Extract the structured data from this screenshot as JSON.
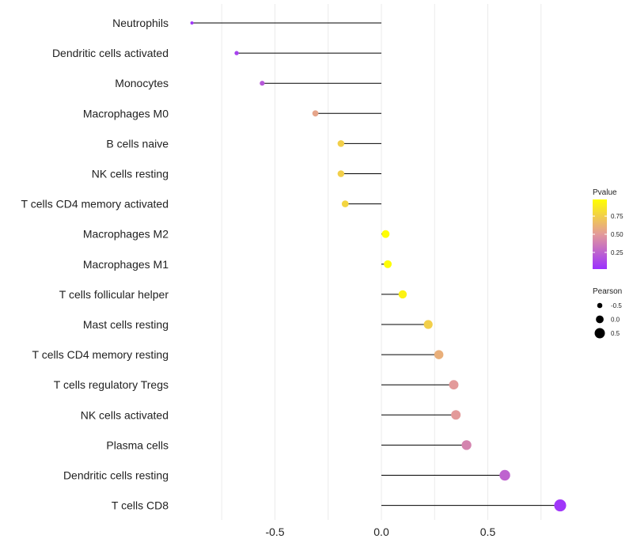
{
  "chart_data": {
    "type": "lollipop",
    "title": "",
    "xlabel": "",
    "ylabel": "",
    "xlim": [
      -0.95,
      0.86
    ],
    "x_ticks": [
      -0.5,
      0.0,
      0.5
    ],
    "x_tick_labels": [
      "-0.5",
      "0.0",
      "0.5"
    ],
    "grid": true,
    "categories": [
      "Neutrophils",
      "Dendritic cells activated",
      "Monocytes",
      "Macrophages M0",
      "B cells naive",
      "NK cells resting",
      "T cells CD4 memory activated",
      "Macrophages M2",
      "Macrophages M1",
      "T cells follicular helper",
      "Mast cells resting",
      "T cells CD4 memory resting",
      "T cells regulatory  Tregs ",
      "NK cells activated",
      "Plasma cells",
      "Dendritic cells resting",
      "T cells CD8"
    ],
    "pearson": [
      -0.89,
      -0.68,
      -0.56,
      -0.31,
      -0.19,
      -0.19,
      -0.17,
      0.02,
      0.03,
      0.1,
      0.22,
      0.27,
      0.34,
      0.35,
      0.4,
      0.58,
      0.84
    ],
    "pvalue": [
      0.05,
      0.1,
      0.2,
      0.55,
      0.75,
      0.75,
      0.78,
      0.97,
      0.97,
      0.92,
      0.75,
      0.6,
      0.5,
      0.5,
      0.4,
      0.25,
      0.05
    ],
    "legends": {
      "color": {
        "title": "Pvalue",
        "ticks": [
          0.25,
          0.5,
          0.75
        ],
        "tick_labels": [
          "0.25",
          "0.50",
          "0.75"
        ],
        "range": [
          0.02,
          0.98
        ],
        "low_color": "#9B30FF",
        "mid_color": "#E39A9A",
        "high_color": "#FFFF00"
      },
      "size": {
        "title": "Pearson",
        "values": [
          -0.5,
          0.0,
          0.5
        ],
        "labels": [
          "-0.5",
          "0.0",
          "0.5"
        ]
      }
    }
  }
}
